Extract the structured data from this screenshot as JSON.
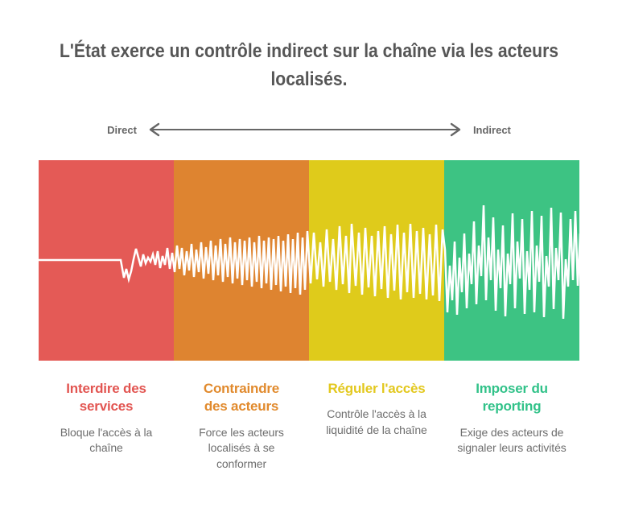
{
  "title": {
    "line1": "L'État exerce un contrôle indirect sur la chaîne via les acteurs",
    "line2": "localisés."
  },
  "axis": {
    "left_label": "Direct",
    "right_label": "Indirect"
  },
  "bands": [
    {
      "id": "interdire",
      "color": "#E45A56",
      "heading_color": "#E25551",
      "heading_lines": [
        "Interdire des",
        "services"
      ],
      "description": "Bloque l'accès à la chaîne"
    },
    {
      "id": "contraindre",
      "color": "#DE8430",
      "heading_color": "#E18A2D",
      "heading_lines": [
        "Contraindre",
        "des acteurs"
      ],
      "description": "Force les acteurs localisés à se conformer"
    },
    {
      "id": "reguler",
      "color": "#DFCB1B",
      "heading_color": "#E3C81E",
      "heading_lines": [
        "Réguler l'accès"
      ],
      "description": "Contrôle l'accès à la liquidité de la chaîne"
    },
    {
      "id": "imposer",
      "color": "#3DC383",
      "heading_color": "#31C289",
      "heading_lines": [
        "Imposer du",
        "reporting"
      ],
      "description": "Exige des acteurs de signaler leurs activités"
    }
  ],
  "waveform": {
    "stroke": "#FFFFFF",
    "stroke_width": 2.5,
    "points": [
      [
        48,
        323
      ],
      [
        150,
        323
      ],
      [
        152,
        334
      ],
      [
        154,
        345
      ],
      [
        157,
        334
      ],
      [
        160,
        347
      ],
      [
        163,
        337
      ],
      [
        166,
        322
      ],
      [
        169,
        309
      ],
      [
        172,
        320
      ],
      [
        175,
        331
      ],
      [
        178,
        316
      ],
      [
        181,
        327
      ],
      [
        184,
        320
      ],
      [
        187,
        325
      ],
      [
        190,
        316
      ],
      [
        193,
        329
      ],
      [
        196,
        312
      ],
      [
        199,
        333
      ],
      [
        202,
        318
      ],
      [
        205,
        329
      ],
      [
        208,
        308
      ],
      [
        211,
        334
      ],
      [
        214,
        314
      ],
      [
        217,
        338
      ],
      [
        220,
        305
      ],
      [
        223,
        334
      ],
      [
        226,
        308
      ],
      [
        229,
        342
      ],
      [
        232,
        312
      ],
      [
        235,
        336
      ],
      [
        238,
        303
      ],
      [
        241,
        344
      ],
      [
        244,
        310
      ],
      [
        247,
        338
      ],
      [
        250,
        301
      ],
      [
        253,
        346
      ],
      [
        256,
        307
      ],
      [
        259,
        340
      ],
      [
        262,
        299
      ],
      [
        265,
        348
      ],
      [
        268,
        305
      ],
      [
        271,
        342
      ],
      [
        274,
        297
      ],
      [
        277,
        350
      ],
      [
        280,
        303
      ],
      [
        283,
        344
      ],
      [
        286,
        295
      ],
      [
        289,
        352
      ],
      [
        292,
        301
      ],
      [
        295,
        346
      ],
      [
        298,
        297
      ],
      [
        301,
        354
      ],
      [
        304,
        299
      ],
      [
        307,
        348
      ],
      [
        310,
        295
      ],
      [
        313,
        356
      ],
      [
        316,
        301
      ],
      [
        319,
        350
      ],
      [
        322,
        293
      ],
      [
        325,
        358
      ],
      [
        328,
        299
      ],
      [
        331,
        352
      ],
      [
        334,
        295
      ],
      [
        337,
        360
      ],
      [
        340,
        297
      ],
      [
        343,
        354
      ],
      [
        346,
        293
      ],
      [
        349,
        362
      ],
      [
        352,
        299
      ],
      [
        355,
        356
      ],
      [
        358,
        291
      ],
      [
        361,
        364
      ],
      [
        364,
        297
      ],
      [
        367,
        358
      ],
      [
        370,
        289
      ],
      [
        373,
        366
      ],
      [
        376,
        295
      ],
      [
        379,
        360
      ],
      [
        382,
        287
      ],
      [
        386,
        352
      ],
      [
        390,
        289
      ],
      [
        394,
        347
      ],
      [
        398,
        301
      ],
      [
        402,
        356
      ],
      [
        406,
        285
      ],
      [
        410,
        350
      ],
      [
        414,
        297
      ],
      [
        418,
        360
      ],
      [
        422,
        281
      ],
      [
        426,
        353
      ],
      [
        430,
        293
      ],
      [
        434,
        364
      ],
      [
        437,
        278
      ],
      [
        442,
        355
      ],
      [
        446,
        289
      ],
      [
        450,
        366
      ],
      [
        454,
        283
      ],
      [
        458,
        357
      ],
      [
        462,
        293
      ],
      [
        466,
        368
      ],
      [
        470,
        287
      ],
      [
        474,
        359
      ],
      [
        478,
        281
      ],
      [
        482,
        370
      ],
      [
        486,
        291
      ],
      [
        490,
        361
      ],
      [
        494,
        279
      ],
      [
        498,
        372
      ],
      [
        502,
        289
      ],
      [
        506,
        363
      ],
      [
        510,
        278
      ],
      [
        514,
        370
      ],
      [
        518,
        287
      ],
      [
        522,
        365
      ],
      [
        526,
        283
      ],
      [
        530,
        372
      ],
      [
        534,
        291
      ],
      [
        538,
        367
      ],
      [
        542,
        279
      ],
      [
        546,
        374
      ],
      [
        550,
        285
      ],
      [
        553,
        310
      ],
      [
        556,
        388
      ],
      [
        559,
        330
      ],
      [
        562,
        373
      ],
      [
        565,
        300
      ],
      [
        568,
        391
      ],
      [
        571,
        320
      ],
      [
        574,
        363
      ],
      [
        577,
        290
      ],
      [
        580,
        383
      ],
      [
        583,
        315
      ],
      [
        586,
        353
      ],
      [
        589,
        275
      ],
      [
        592,
        378
      ],
      [
        595,
        305
      ],
      [
        598,
        343
      ],
      [
        601,
        255
      ],
      [
        604,
        373
      ],
      [
        607,
        295
      ],
      [
        610,
        348
      ],
      [
        613,
        270
      ],
      [
        616,
        386
      ],
      [
        619,
        310
      ],
      [
        622,
        358
      ],
      [
        625,
        280
      ],
      [
        628,
        393
      ],
      [
        631,
        315
      ],
      [
        634,
        353
      ],
      [
        637,
        265
      ],
      [
        640,
        383
      ],
      [
        643,
        300
      ],
      [
        646,
        346
      ],
      [
        649,
        272
      ],
      [
        652,
        390
      ],
      [
        655,
        312
      ],
      [
        658,
        360
      ],
      [
        661,
        262
      ],
      [
        664,
        388
      ],
      [
        667,
        305
      ],
      [
        670,
        350
      ],
      [
        673,
        268
      ],
      [
        676,
        394
      ],
      [
        679,
        318
      ],
      [
        682,
        356
      ],
      [
        685,
        258
      ],
      [
        688,
        384
      ],
      [
        691,
        308
      ],
      [
        694,
        348
      ],
      [
        697,
        264
      ],
      [
        700,
        396
      ],
      [
        703,
        322
      ],
      [
        706,
        356
      ],
      [
        709,
        272
      ],
      [
        712,
        348
      ],
      [
        715,
        262
      ],
      [
        718,
        355
      ],
      [
        721,
        290
      ],
      [
        723,
        372
      ]
    ]
  },
  "colors": {
    "background": "#FFFFFF",
    "title": "#565656",
    "arrow": "#666666",
    "description": "#6E6E6E"
  }
}
